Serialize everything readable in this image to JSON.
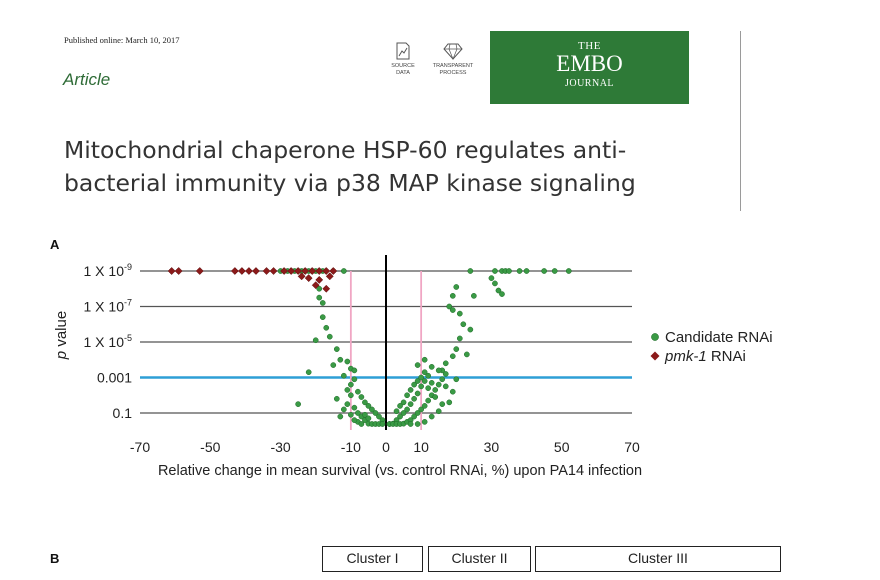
{
  "header": {
    "pub_date": "Published online: March 10, 2017",
    "article_label": "Article",
    "badges": [
      {
        "line1": "SOURCE",
        "line2": "DATA",
        "icon": "source-data-icon"
      },
      {
        "line1": "TRANSPARENT",
        "line2": "PROCESS",
        "icon": "diamond-icon"
      }
    ],
    "journal": {
      "line1": "THE",
      "line2": "EMBO",
      "line3": "JOURNAL",
      "bg_color": "#2e7a37"
    }
  },
  "title": {
    "line1": "Mitochondrial chaperone HSP-60 regulates anti-",
    "line2": "bacterial immunity via p38 MAP kinase signaling"
  },
  "panel_a_label": "A",
  "panel_b_label": "B",
  "clusters": [
    "Cluster I",
    "Cluster II",
    "Cluster III"
  ],
  "chart_data": {
    "type": "scatter",
    "title": "",
    "xlabel": "Relative change in mean survival (vs. control RNAi, %) upon PA14 infection",
    "ylabel_italic": "p",
    "ylabel_rest": " value",
    "xlim": [
      -70,
      70
    ],
    "xticks": [
      "-70",
      "-50",
      "-30",
      "-10",
      "0",
      "10",
      "30",
      "50",
      "70"
    ],
    "xtick_values": [
      -70,
      -50,
      -30,
      -10,
      0,
      10,
      30,
      50,
      70
    ],
    "y_scale": "-log10(p)",
    "ylim_neglog10": [
      0,
      9.8
    ],
    "yticks": [
      {
        "base": "1 X 10",
        "exp": "-9",
        "neglog": 9
      },
      {
        "base": "1 X 10",
        "exp": "-7",
        "neglog": 7
      },
      {
        "base": "1 X 10",
        "exp": "-5",
        "neglog": 5
      },
      {
        "base": "0.001",
        "exp": "",
        "neglog": 3
      },
      {
        "base": "0.1",
        "exp": "",
        "neglog": 1
      }
    ],
    "threshold_line": {
      "p": 0.001,
      "neglog": 3,
      "color": "#2e9fd6"
    },
    "vertical_lines": [
      {
        "x": 0,
        "color": "#000000"
      },
      {
        "x": -10,
        "color": "#f0a6c4"
      },
      {
        "x": 10,
        "color": "#f0a6c4"
      }
    ],
    "legend": {
      "placement": "right"
    },
    "series": [
      {
        "name": "Candidate RNAi",
        "name_italic": "",
        "color": "#3a9a45",
        "marker": "circle",
        "points": [
          [
            -30,
            9
          ],
          [
            -29,
            9
          ],
          [
            -28,
            9
          ],
          [
            -27,
            9
          ],
          [
            -26,
            9
          ],
          [
            -25,
            9
          ],
          [
            -24,
            9
          ],
          [
            -23,
            9
          ],
          [
            -22,
            9
          ],
          [
            -21,
            9
          ],
          [
            -20,
            9
          ],
          [
            -18,
            9
          ],
          [
            -15,
            9
          ],
          [
            -12,
            9
          ],
          [
            24,
            9
          ],
          [
            31,
            9
          ],
          [
            33,
            9
          ],
          [
            34,
            9
          ],
          [
            35,
            9
          ],
          [
            38,
            9
          ],
          [
            40,
            9
          ],
          [
            45,
            9
          ],
          [
            48,
            9
          ],
          [
            52,
            9
          ],
          [
            30,
            8.6
          ],
          [
            31,
            8.3
          ],
          [
            32,
            7.9
          ],
          [
            20,
            8.1
          ],
          [
            19,
            7.6
          ],
          [
            25,
            7.6
          ],
          [
            33,
            7.7
          ],
          [
            18,
            7.0
          ],
          [
            19,
            6.8
          ],
          [
            21,
            6.6
          ],
          [
            22,
            6.0
          ],
          [
            24,
            5.7
          ],
          [
            21,
            5.2
          ],
          [
            20,
            4.6
          ],
          [
            19,
            4.2
          ],
          [
            17,
            3.8
          ],
          [
            16,
            3.4
          ],
          [
            23,
            4.3
          ],
          [
            -19,
            8.0
          ],
          [
            -19,
            7.5
          ],
          [
            -18,
            7.2
          ],
          [
            -18,
            6.4
          ],
          [
            -17,
            5.8
          ],
          [
            -20,
            5.1
          ],
          [
            -16,
            5.3
          ],
          [
            -14,
            4.6
          ],
          [
            -13,
            4.0
          ],
          [
            -15,
            3.7
          ],
          [
            -11,
            3.9
          ],
          [
            -10,
            3.5
          ],
          [
            -9,
            3.4
          ],
          [
            -22,
            3.3
          ],
          [
            -12,
            3.1
          ],
          [
            -9,
            2.9
          ],
          [
            -10,
            2.6
          ],
          [
            -11,
            2.3
          ],
          [
            -25,
            1.5
          ],
          [
            -14,
            1.8
          ],
          [
            -8,
            2.2
          ],
          [
            -7,
            1.9
          ],
          [
            -6,
            1.6
          ],
          [
            -5,
            1.4
          ],
          [
            -4,
            1.2
          ],
          [
            -3,
            1.0
          ],
          [
            -2,
            0.8
          ],
          [
            -1,
            0.6
          ],
          [
            -9,
            1.3
          ],
          [
            -8,
            1.0
          ],
          [
            -7,
            0.8
          ],
          [
            -6,
            0.6
          ],
          [
            -5,
            0.4
          ],
          [
            -4,
            0.2
          ],
          [
            -3,
            0.1
          ],
          [
            -2,
            0.3
          ],
          [
            -1,
            0.1
          ],
          [
            -6,
            0.9
          ],
          [
            -5,
            0.7
          ],
          [
            -8,
            0.5
          ],
          [
            -7,
            0.3
          ],
          [
            -10,
            0.9
          ],
          [
            -9,
            0.6
          ],
          [
            -11,
            1.5
          ],
          [
            -12,
            1.2
          ],
          [
            -13,
            0.8
          ],
          [
            -10,
            2.0
          ],
          [
            1,
            0.2
          ],
          [
            2,
            0.4
          ],
          [
            3,
            0.6
          ],
          [
            4,
            0.8
          ],
          [
            5,
            1.0
          ],
          [
            6,
            1.2
          ],
          [
            7,
            1.5
          ],
          [
            8,
            1.8
          ],
          [
            9,
            2.1
          ],
          [
            10,
            2.5
          ],
          [
            11,
            2.8
          ],
          [
            12,
            3.1
          ],
          [
            1,
            0.1
          ],
          [
            2,
            0.1
          ],
          [
            3,
            0.2
          ],
          [
            4,
            0.3
          ],
          [
            5,
            0.4
          ],
          [
            6,
            0.5
          ],
          [
            7,
            0.6
          ],
          [
            8,
            0.8
          ],
          [
            9,
            1.0
          ],
          [
            10,
            1.2
          ],
          [
            11,
            1.4
          ],
          [
            12,
            1.7
          ],
          [
            13,
            2.0
          ],
          [
            14,
            2.3
          ],
          [
            15,
            2.6
          ],
          [
            16,
            2.9
          ],
          [
            17,
            3.2
          ],
          [
            3,
            1.1
          ],
          [
            5,
            1.6
          ],
          [
            7,
            2.3
          ],
          [
            9,
            2.8
          ],
          [
            11,
            3.3
          ],
          [
            13,
            2.7
          ],
          [
            4,
            1.4
          ],
          [
            6,
            2.0
          ],
          [
            8,
            2.6
          ],
          [
            10,
            3.0
          ],
          [
            12,
            2.4
          ],
          [
            14,
            1.9
          ],
          [
            16,
            1.5
          ],
          [
            15,
            1.1
          ],
          [
            13,
            0.8
          ],
          [
            11,
            0.5
          ],
          [
            9,
            0.3
          ],
          [
            7,
            0.1
          ],
          [
            18,
            1.6
          ],
          [
            19,
            2.2
          ],
          [
            17,
            2.5
          ],
          [
            20,
            2.9
          ],
          [
            15,
            3.4
          ],
          [
            13,
            3.6
          ],
          [
            11,
            4.0
          ],
          [
            9,
            3.7
          ]
        ]
      },
      {
        "name": "RNAi",
        "name_italic": "pmk-1",
        "color": "#8b1a1a",
        "marker": "diamond",
        "points": [
          [
            -61,
            9
          ],
          [
            -59,
            9
          ],
          [
            -53,
            9
          ],
          [
            -43,
            9
          ],
          [
            -41,
            9
          ],
          [
            -39,
            9
          ],
          [
            -37,
            9
          ],
          [
            -34,
            9
          ],
          [
            -32,
            9
          ],
          [
            -29,
            9
          ],
          [
            -27,
            9
          ],
          [
            -25,
            9
          ],
          [
            -23,
            9
          ],
          [
            -21,
            9
          ],
          [
            -19,
            9
          ],
          [
            -17,
            9
          ],
          [
            -15,
            9
          ],
          [
            -24,
            8.7
          ],
          [
            -22,
            8.6
          ],
          [
            -19,
            8.5
          ],
          [
            -16,
            8.7
          ],
          [
            -20,
            8.2
          ],
          [
            -17,
            8.0
          ]
        ]
      }
    ]
  }
}
